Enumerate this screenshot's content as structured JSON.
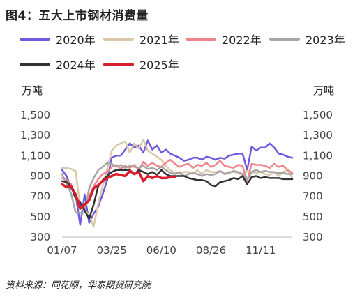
{
  "figure": {
    "title": "图4：五大上市钢材消费量",
    "source": "资料来源：同花顺，华泰期货研究院"
  },
  "chart_data": {
    "type": "line",
    "title": "图4：五大上市钢材消费量",
    "ylabel_left": "万吨",
    "ylabel_right": "万吨",
    "ylim": [
      300,
      1500
    ],
    "yticks": [
      "1,500",
      "1,300",
      "1,100",
      "900",
      "700",
      "500",
      "300"
    ],
    "ytick_values": [
      1500,
      1300,
      1100,
      900,
      700,
      500,
      300
    ],
    "xlim": [
      1,
      52
    ],
    "xticks": [
      "01/07",
      "03/25",
      "06/10",
      "08/26",
      "11/11"
    ],
    "xtick_weeks": [
      1,
      12,
      23,
      34,
      45
    ],
    "legend_position": "top",
    "grid": false,
    "series": [
      {
        "name": "2020年",
        "color": "#7059e0",
        "width": 2.5,
        "x": [
          1,
          2,
          3,
          4,
          5,
          6,
          7,
          8,
          9,
          10,
          11,
          12,
          13,
          14,
          15,
          16,
          17,
          18,
          19,
          20,
          21,
          22,
          23,
          24,
          25,
          26,
          27,
          28,
          29,
          30,
          31,
          32,
          33,
          34,
          35,
          36,
          37,
          38,
          39,
          40,
          41,
          42,
          43,
          44,
          45,
          46,
          47,
          48,
          49,
          50,
          51,
          52
        ],
        "values": [
          960,
          900,
          780,
          720,
          420,
          720,
          440,
          530,
          600,
          720,
          860,
          1080,
          1100,
          1100,
          1160,
          1220,
          1180,
          1200,
          1130,
          1250,
          1160,
          1200,
          1130,
          1160,
          1120,
          1100,
          1080,
          1050,
          1060,
          1080,
          1080,
          1060,
          1090,
          1080,
          1060,
          1080,
          1070,
          1100,
          1110,
          1120,
          1120,
          960,
          1190,
          1150,
          1180,
          1180,
          1220,
          1180,
          1120,
          1110,
          1090,
          1080
        ]
      },
      {
        "name": "2021年",
        "color": "#d9c9a8",
        "width": 2.5,
        "x": [
          1,
          2,
          3,
          4,
          5,
          6,
          7,
          8,
          9,
          10,
          11,
          12,
          13,
          14,
          15,
          16,
          17,
          18,
          19,
          20,
          21,
          22,
          23,
          24,
          25,
          26,
          27,
          28,
          29,
          30,
          31,
          32,
          33,
          34,
          35,
          36,
          37,
          38,
          39,
          40,
          41,
          42,
          43,
          44,
          45,
          46,
          47,
          48,
          49,
          50,
          51,
          52
        ],
        "values": [
          980,
          980,
          970,
          950,
          600,
          560,
          520,
          400,
          630,
          800,
          970,
          1150,
          1200,
          1220,
          1240,
          1130,
          1220,
          1170,
          1260,
          1150,
          1120,
          1090,
          1060,
          1000,
          960,
          930,
          920,
          940,
          940,
          920,
          960,
          920,
          960,
          940,
          940,
          950,
          930,
          940,
          940,
          930,
          910,
          950,
          940,
          930,
          940,
          920,
          910,
          940,
          900,
          940,
          960,
          880
        ]
      },
      {
        "name": "2022年",
        "color": "#f0848a",
        "width": 2.5,
        "x": [
          1,
          2,
          3,
          4,
          5,
          6,
          7,
          8,
          9,
          10,
          11,
          12,
          13,
          14,
          15,
          16,
          17,
          18,
          19,
          20,
          21,
          22,
          23,
          24,
          25,
          26,
          27,
          28,
          29,
          30,
          31,
          32,
          33,
          34,
          35,
          36,
          37,
          38,
          39,
          40,
          41,
          42,
          43,
          44,
          45,
          46,
          47,
          48,
          49,
          50,
          51,
          52
        ],
        "values": [
          880,
          860,
          820,
          700,
          620,
          580,
          700,
          800,
          870,
          920,
          940,
          990,
          1010,
          970,
          1000,
          980,
          1010,
          960,
          1040,
          1000,
          1030,
          1000,
          990,
          1030,
          1060,
          1020,
          990,
          1010,
          1020,
          980,
          1010,
          1000,
          1030,
          990,
          1010,
          1050,
          1000,
          990,
          980,
          1010,
          1000,
          850,
          1020,
          1010,
          1010,
          1000,
          980,
          1020,
          990,
          1000,
          960,
          930
        ]
      },
      {
        "name": "2023年",
        "color": "#a5a5a5",
        "width": 2.5,
        "x": [
          1,
          2,
          3,
          4,
          5,
          6,
          7,
          8,
          9,
          10,
          11,
          12,
          13,
          14,
          15,
          16,
          17,
          18,
          19,
          20,
          21,
          22,
          23,
          24,
          25,
          26,
          27,
          28,
          29,
          30,
          31,
          32,
          33,
          34,
          35,
          36,
          37,
          38,
          39,
          40,
          41,
          42,
          43,
          44,
          45,
          46,
          47,
          48,
          49,
          50,
          51,
          52
        ],
        "values": [
          920,
          820,
          730,
          540,
          540,
          540,
          780,
          880,
          960,
          990,
          1030,
          1020,
          990,
          1010,
          980,
          1000,
          990,
          980,
          1000,
          970,
          980,
          960,
          990,
          960,
          930,
          920,
          940,
          900,
          920,
          930,
          920,
          900,
          920,
          910,
          920,
          950,
          920,
          930,
          950,
          940,
          920,
          860,
          940,
          960,
          940,
          950,
          940,
          940,
          930,
          930,
          920,
          920
        ]
      },
      {
        "name": "2024年",
        "color": "#333333",
        "width": 2.5,
        "x": [
          1,
          2,
          3,
          4,
          5,
          6,
          7,
          8,
          9,
          10,
          11,
          12,
          13,
          14,
          15,
          16,
          17,
          18,
          19,
          20,
          21,
          22,
          23,
          24,
          25,
          26,
          27,
          28,
          29,
          30,
          31,
          32,
          33,
          34,
          35,
          36,
          37,
          38,
          39,
          40,
          41,
          42,
          43,
          44,
          45,
          46,
          47,
          48,
          49,
          50,
          51,
          52
        ],
        "values": [
          850,
          840,
          800,
          680,
          640,
          560,
          480,
          620,
          800,
          860,
          900,
          940,
          960,
          960,
          960,
          960,
          920,
          960,
          940,
          920,
          940,
          910,
          960,
          920,
          900,
          900,
          900,
          900,
          880,
          870,
          860,
          860,
          850,
          810,
          800,
          840,
          850,
          860,
          880,
          870,
          900,
          820,
          890,
          900,
          880,
          890,
          880,
          880,
          880,
          870,
          870,
          870
        ]
      },
      {
        "name": "2025年",
        "color": "#d81e2c",
        "width": 3.5,
        "x": [
          1,
          2,
          3,
          4,
          5,
          6,
          7,
          8,
          9,
          10,
          11,
          12,
          13,
          14,
          15,
          16,
          17,
          18,
          19,
          20,
          21,
          22,
          23,
          24,
          25,
          26
        ],
        "values": [
          820,
          790,
          800,
          720,
          580,
          620,
          660,
          780,
          810,
          850,
          880,
          900,
          920,
          910,
          900,
          950,
          920,
          940,
          850,
          900,
          880,
          900,
          880,
          880,
          890,
          890
        ]
      }
    ]
  }
}
